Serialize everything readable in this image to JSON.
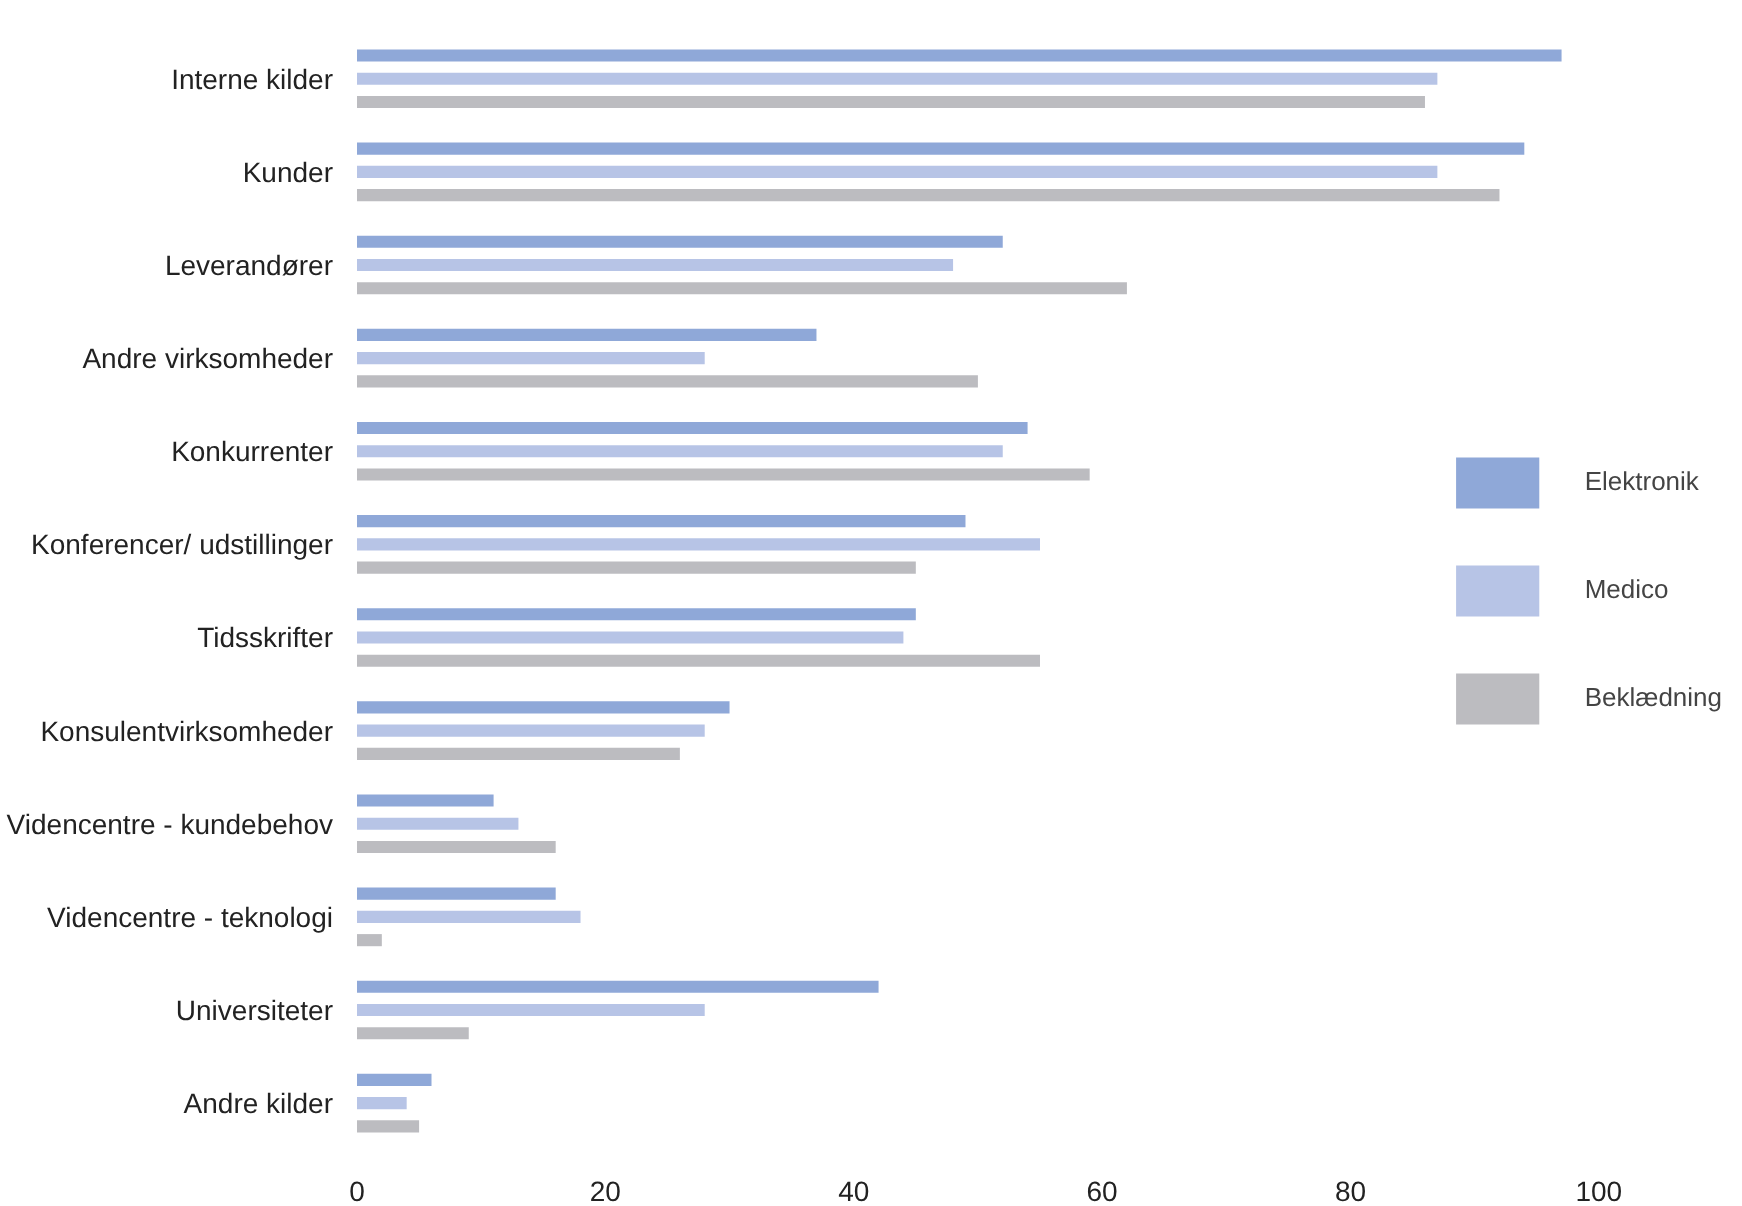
{
  "chart_data": {
    "type": "bar",
    "orientation": "horizontal",
    "categories": [
      "Interne kilder",
      "Kunder",
      "Leverandører",
      "Andre virksomheder",
      "Konkurrenter",
      "Konferencer/ udstillinger",
      "Tidsskrifter",
      "Konsulentvirksomheder",
      "Videncentre - kundebehov",
      "Videncentre - teknologi",
      "Universiteter",
      "Andre kilder"
    ],
    "series": [
      {
        "name": "Elektronik",
        "color": "#8fa8d8",
        "values": [
          97,
          94,
          52,
          37,
          54,
          49,
          45,
          30,
          11,
          16,
          42,
          6
        ]
      },
      {
        "name": "Medico",
        "color": "#b7c4e6",
        "values": [
          87,
          87,
          48,
          28,
          52,
          55,
          44,
          28,
          13,
          18,
          28,
          4
        ]
      },
      {
        "name": "Beklædning",
        "color": "#bcbcc0",
        "values": [
          86,
          92,
          62,
          50,
          59,
          45,
          55,
          26,
          16,
          2,
          9,
          5
        ]
      }
    ],
    "xlim": [
      0,
      100
    ],
    "xticks": [
      0,
      20,
      40,
      60,
      80,
      100
    ],
    "grid": false,
    "legend": "right"
  }
}
